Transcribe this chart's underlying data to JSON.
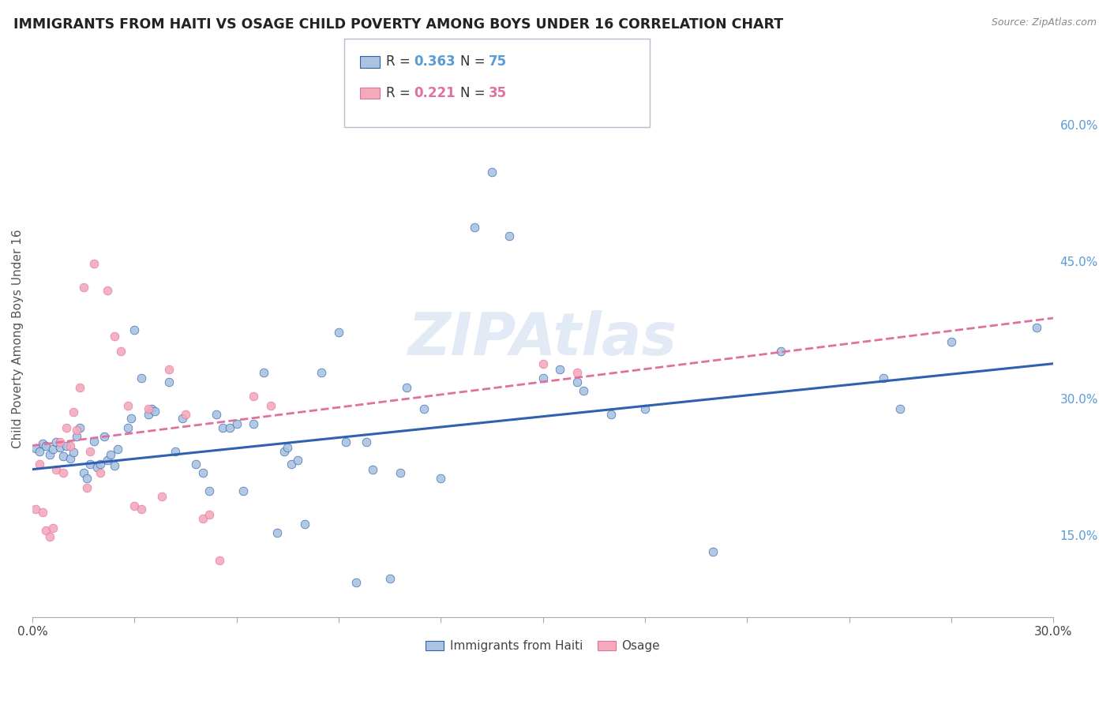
{
  "title": "IMMIGRANTS FROM HAITI VS OSAGE CHILD POVERTY AMONG BOYS UNDER 16 CORRELATION CHART",
  "source": "Source: ZipAtlas.com",
  "ylabel": "Child Poverty Among Boys Under 16",
  "ytick_labels": [
    "15.0%",
    "30.0%",
    "45.0%",
    "60.0%"
  ],
  "ytick_values": [
    0.15,
    0.3,
    0.45,
    0.6
  ],
  "xlim": [
    0.0,
    0.3
  ],
  "ylim": [
    0.06,
    0.67
  ],
  "haiti_color": "#aac4e0",
  "osage_color": "#f4aabb",
  "haiti_line_color": "#3060b0",
  "osage_line_color": "#e070a0",
  "haiti_scatter": [
    [
      0.001,
      0.245
    ],
    [
      0.002,
      0.242
    ],
    [
      0.003,
      0.25
    ],
    [
      0.004,
      0.248
    ],
    [
      0.005,
      0.238
    ],
    [
      0.006,
      0.244
    ],
    [
      0.007,
      0.252
    ],
    [
      0.008,
      0.246
    ],
    [
      0.009,
      0.236
    ],
    [
      0.01,
      0.248
    ],
    [
      0.011,
      0.234
    ],
    [
      0.012,
      0.241
    ],
    [
      0.013,
      0.258
    ],
    [
      0.014,
      0.268
    ],
    [
      0.015,
      0.218
    ],
    [
      0.016,
      0.212
    ],
    [
      0.017,
      0.228
    ],
    [
      0.018,
      0.253
    ],
    [
      0.019,
      0.224
    ],
    [
      0.02,
      0.228
    ],
    [
      0.021,
      0.258
    ],
    [
      0.022,
      0.232
    ],
    [
      0.023,
      0.238
    ],
    [
      0.024,
      0.226
    ],
    [
      0.025,
      0.244
    ],
    [
      0.028,
      0.268
    ],
    [
      0.029,
      0.278
    ],
    [
      0.03,
      0.375
    ],
    [
      0.032,
      0.322
    ],
    [
      0.034,
      0.282
    ],
    [
      0.035,
      0.288
    ],
    [
      0.036,
      0.286
    ],
    [
      0.04,
      0.318
    ],
    [
      0.042,
      0.242
    ],
    [
      0.044,
      0.278
    ],
    [
      0.048,
      0.228
    ],
    [
      0.05,
      0.218
    ],
    [
      0.052,
      0.198
    ],
    [
      0.054,
      0.282
    ],
    [
      0.056,
      0.268
    ],
    [
      0.058,
      0.268
    ],
    [
      0.06,
      0.272
    ],
    [
      0.062,
      0.198
    ],
    [
      0.065,
      0.272
    ],
    [
      0.068,
      0.328
    ],
    [
      0.072,
      0.152
    ],
    [
      0.074,
      0.242
    ],
    [
      0.075,
      0.246
    ],
    [
      0.076,
      0.228
    ],
    [
      0.078,
      0.232
    ],
    [
      0.08,
      0.162
    ],
    [
      0.085,
      0.328
    ],
    [
      0.09,
      0.372
    ],
    [
      0.092,
      0.252
    ],
    [
      0.095,
      0.098
    ],
    [
      0.098,
      0.252
    ],
    [
      0.1,
      0.222
    ],
    [
      0.105,
      0.102
    ],
    [
      0.108,
      0.218
    ],
    [
      0.11,
      0.312
    ],
    [
      0.115,
      0.288
    ],
    [
      0.12,
      0.212
    ],
    [
      0.13,
      0.488
    ],
    [
      0.135,
      0.548
    ],
    [
      0.14,
      0.478
    ],
    [
      0.15,
      0.322
    ],
    [
      0.155,
      0.332
    ],
    [
      0.16,
      0.318
    ],
    [
      0.162,
      0.308
    ],
    [
      0.17,
      0.282
    ],
    [
      0.18,
      0.288
    ],
    [
      0.2,
      0.132
    ],
    [
      0.22,
      0.352
    ],
    [
      0.25,
      0.322
    ],
    [
      0.255,
      0.288
    ],
    [
      0.27,
      0.362
    ],
    [
      0.295,
      0.378
    ]
  ],
  "osage_scatter": [
    [
      0.001,
      0.178
    ],
    [
      0.002,
      0.228
    ],
    [
      0.003,
      0.175
    ],
    [
      0.004,
      0.155
    ],
    [
      0.005,
      0.148
    ],
    [
      0.006,
      0.158
    ],
    [
      0.007,
      0.222
    ],
    [
      0.008,
      0.252
    ],
    [
      0.009,
      0.218
    ],
    [
      0.01,
      0.268
    ],
    [
      0.011,
      0.248
    ],
    [
      0.012,
      0.285
    ],
    [
      0.013,
      0.265
    ],
    [
      0.014,
      0.312
    ],
    [
      0.015,
      0.422
    ],
    [
      0.016,
      0.202
    ],
    [
      0.017,
      0.242
    ],
    [
      0.018,
      0.448
    ],
    [
      0.02,
      0.218
    ],
    [
      0.022,
      0.418
    ],
    [
      0.024,
      0.368
    ],
    [
      0.026,
      0.352
    ],
    [
      0.028,
      0.292
    ],
    [
      0.03,
      0.182
    ],
    [
      0.032,
      0.178
    ],
    [
      0.034,
      0.288
    ],
    [
      0.038,
      0.192
    ],
    [
      0.04,
      0.332
    ],
    [
      0.045,
      0.282
    ],
    [
      0.05,
      0.168
    ],
    [
      0.052,
      0.172
    ],
    [
      0.055,
      0.122
    ],
    [
      0.065,
      0.302
    ],
    [
      0.07,
      0.292
    ],
    [
      0.15,
      0.338
    ],
    [
      0.16,
      0.328
    ]
  ],
  "haiti_trendline": [
    [
      0.0,
      0.222
    ],
    [
      0.3,
      0.338
    ]
  ],
  "osage_trendline": [
    [
      0.0,
      0.248
    ],
    [
      0.3,
      0.388
    ]
  ],
  "watermark": "ZIPAtlas",
  "background_color": "#ffffff",
  "grid_color": "#e0e0e8"
}
